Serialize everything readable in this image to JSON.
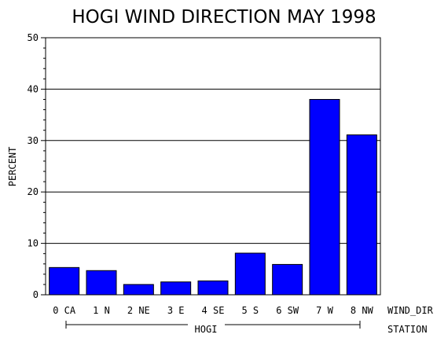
{
  "chart_data": {
    "type": "bar",
    "title": "HOGI WIND DIRECTION MAY 1998",
    "ylabel": "PERCENT",
    "xlabel": "WIND_DIR",
    "group_axis_label": "STATION",
    "group_label": "HOGI",
    "ylim": [
      0,
      50
    ],
    "yticks": [
      0,
      10,
      20,
      30,
      40,
      50
    ],
    "grid": true,
    "bar_color": "#0000FF",
    "categories": [
      "0 CA",
      "1 N",
      "2 NE",
      "3 E",
      "4 SE",
      "5 S",
      "6 SW",
      "7 W",
      "8 NW"
    ],
    "values": [
      5.3,
      4.7,
      2.0,
      2.5,
      2.7,
      8.1,
      5.9,
      38.0,
      31.1
    ]
  }
}
